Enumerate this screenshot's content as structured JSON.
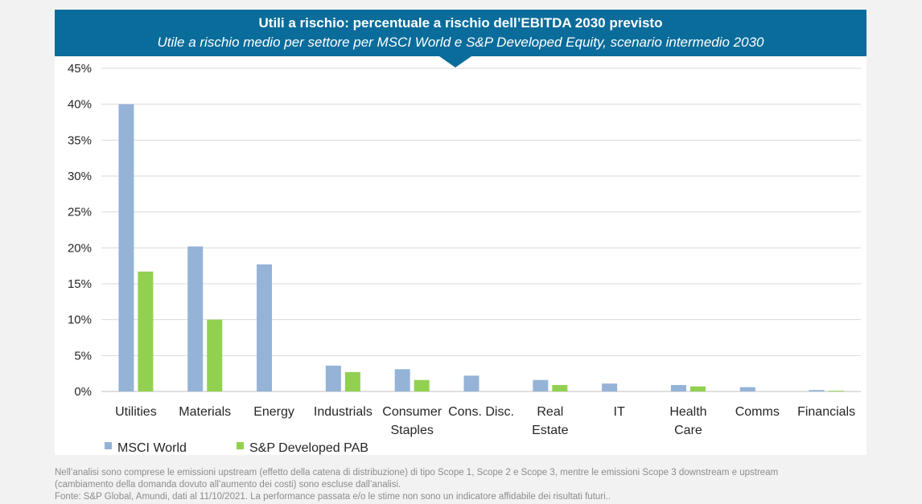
{
  "header": {
    "title": "Utili a rischio: percentuale a rischio dell’EBITDA 2030 previsto",
    "subtitle": "Utile a rischio medio per settore per MSCI World e S&P Developed Equity, scenario intermedio 2030"
  },
  "chart_data": {
    "type": "bar",
    "title": "Utili a rischio: percentuale a rischio dell’EBITDA 2030 previsto",
    "subtitle": "Utile a rischio medio per settore per MSCI World e S&P Developed Equity, scenario intermedio 2030",
    "categories": [
      [
        "Utilities"
      ],
      [
        "Materials"
      ],
      [
        "Energy"
      ],
      [
        "Industrials"
      ],
      [
        "Consumer",
        "Staples"
      ],
      [
        "Cons. Disc."
      ],
      [
        "Real",
        "Estate"
      ],
      [
        "IT"
      ],
      [
        "Health",
        "Care"
      ],
      [
        "Comms"
      ],
      [
        "Financials"
      ]
    ],
    "series": [
      {
        "name": "MSCI World",
        "color": "#95b3d7",
        "values": [
          40.0,
          20.2,
          17.7,
          3.6,
          3.1,
          2.2,
          1.6,
          1.1,
          0.9,
          0.6,
          0.2
        ]
      },
      {
        "name": "S&P Developed PAB",
        "color": "#92d050",
        "values": [
          16.7,
          10.0,
          0.0,
          2.7,
          1.6,
          0.0,
          0.9,
          0.0,
          0.7,
          0.0,
          0.1
        ]
      }
    ],
    "ylim": [
      0,
      45
    ],
    "yticks": [
      0,
      5,
      10,
      15,
      20,
      25,
      30,
      35,
      40,
      45
    ],
    "ytick_labels": [
      "0%",
      "5%",
      "10%",
      "15%",
      "20%",
      "25%",
      "30%",
      "35%",
      "40%",
      "45%"
    ],
    "grid": true,
    "legend": "bottom-left"
  },
  "footnote": {
    "line1": "Nell’analisi sono comprese le emissioni upstream (effetto della catena di distribuzione) di tipo Scope 1, Scope 2 e Scope 3, mentre le emissioni Scope 3 downstream e upstream",
    "line2": "(cambiamento della domanda dovuto all’aumento dei costi) sono escluse dall’analisi.",
    "line3": "Fonte: S&P Global, Amundi, dati al 11/10/2021. La performance passata e/o le stime non sono un indicatore affidabile dei risultati futuri.."
  }
}
